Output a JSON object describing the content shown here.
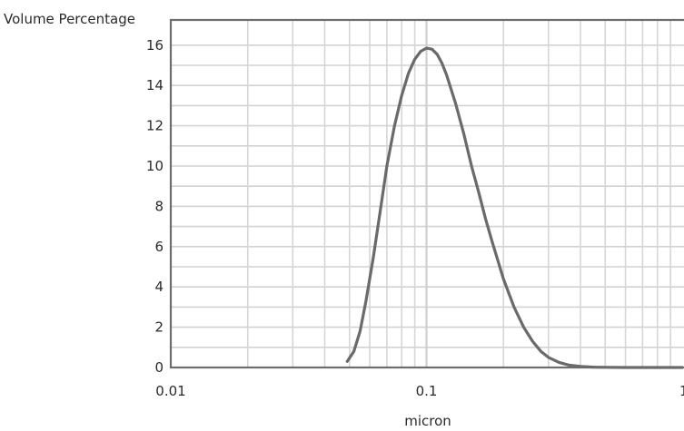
{
  "chart_data": {
    "type": "line",
    "title": "",
    "ylabel": "Volume Percentage",
    "xlabel": "micron",
    "xscale": "log",
    "xlim": [
      0.01,
      1
    ],
    "ylim": [
      0,
      17
    ],
    "grid": true,
    "legend": "none",
    "xticks": [
      {
        "value": 0.01,
        "label": "0.01"
      },
      {
        "value": 0.1,
        "label": "0.1"
      },
      {
        "value": 1,
        "label": "1"
      }
    ],
    "yticks": [
      {
        "value": 0,
        "label": "0"
      },
      {
        "value": 2,
        "label": "2"
      },
      {
        "value": 4,
        "label": "4"
      },
      {
        "value": 6,
        "label": "6"
      },
      {
        "value": 8,
        "label": "8"
      },
      {
        "value": 10,
        "label": "10"
      },
      {
        "value": 12,
        "label": "12"
      },
      {
        "value": 14,
        "label": "14"
      },
      {
        "value": 16,
        "label": "16"
      }
    ],
    "series": [
      {
        "color": "#6a6a6a",
        "x": [
          0.049,
          0.052,
          0.055,
          0.058,
          0.062,
          0.066,
          0.07,
          0.075,
          0.08,
          0.085,
          0.09,
          0.095,
          0.1,
          0.105,
          0.11,
          0.115,
          0.12,
          0.13,
          0.14,
          0.15,
          0.16,
          0.17,
          0.18,
          0.2,
          0.22,
          0.24,
          0.26,
          0.28,
          0.3,
          0.33,
          0.36,
          0.4,
          0.45,
          0.5,
          0.6,
          0.7,
          0.85,
          1.0
        ],
        "y": [
          0.3,
          0.8,
          1.8,
          3.3,
          5.5,
          7.8,
          10.0,
          12.0,
          13.5,
          14.6,
          15.3,
          15.7,
          15.85,
          15.8,
          15.55,
          15.1,
          14.5,
          13.1,
          11.6,
          10.0,
          8.7,
          7.4,
          6.3,
          4.4,
          3.0,
          2.0,
          1.3,
          0.8,
          0.5,
          0.25,
          0.12,
          0.05,
          0.02,
          0.01,
          0.0,
          0.0,
          0.0,
          0.0
        ]
      }
    ]
  }
}
